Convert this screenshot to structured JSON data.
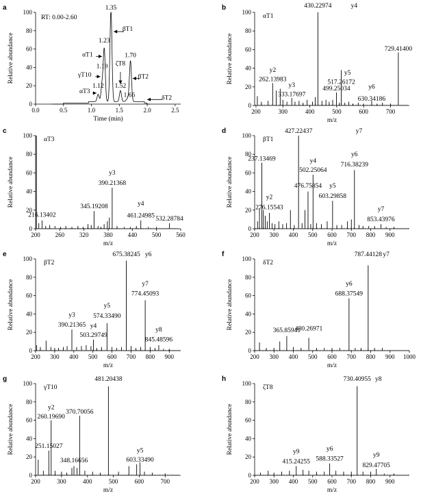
{
  "chart_data": [
    {
      "panel": "a",
      "type": "line",
      "annotation": "RT: 0.00-2.60",
      "xlabel": "Time (min)",
      "ylabel": "Relative abundance",
      "xlim": [
        0,
        2.6
      ],
      "ylim": [
        0,
        100
      ],
      "xticks": [
        0.0,
        0.5,
        1.0,
        1.5,
        2.0,
        2.5
      ],
      "yticks": [
        0,
        20,
        40,
        60,
        80,
        100
      ],
      "peaks": [
        {
          "x": 1.12,
          "y": 8
        },
        {
          "x": 1.19,
          "y": 18
        },
        {
          "x": 1.23,
          "y": 57
        },
        {
          "x": 1.35,
          "y": 100
        },
        {
          "x": 1.52,
          "y": 12
        },
        {
          "x": 1.7,
          "y": 43
        },
        {
          "x": 1.66,
          "y": 4
        }
      ],
      "labels": [
        {
          "text": "1.35",
          "x": 1.35,
          "y": 103
        },
        {
          "text": "1.23",
          "x": 1.23,
          "y": 67
        },
        {
          "text": "1.19",
          "x": 1.19,
          "y": 39
        },
        {
          "text": "1.12",
          "x": 1.12,
          "y": 18
        },
        {
          "text": "1.70",
          "x": 1.7,
          "y": 51
        },
        {
          "text": "1.52",
          "x": 1.52,
          "y": 18
        },
        {
          "text": "1.66",
          "x": 1.68,
          "y": 8
        },
        {
          "text": "βT1",
          "x": 1.65,
          "y": 80
        },
        {
          "text": "αT1",
          "x": 0.93,
          "y": 52
        },
        {
          "text": "γT10",
          "x": 0.88,
          "y": 30
        },
        {
          "text": "ζT8",
          "x": 1.52,
          "y": 42
        },
        {
          "text": "βT2",
          "x": 1.93,
          "y": 28
        },
        {
          "text": "αT3",
          "x": 0.88,
          "y": 12
        },
        {
          "text": "δT2",
          "x": 2.35,
          "y": 5
        }
      ],
      "arrows": [
        {
          "from": [
            1.58,
            79
          ],
          "to": [
            1.4,
            79
          ]
        },
        {
          "from": [
            1.08,
            52
          ],
          "to": [
            1.19,
            52
          ]
        },
        {
          "from": [
            1.07,
            30
          ],
          "to": [
            1.16,
            30
          ]
        },
        {
          "from": [
            1.52,
            35
          ],
          "to": [
            1.52,
            22
          ]
        },
        {
          "from": [
            1.87,
            28
          ],
          "to": [
            1.74,
            28
          ]
        },
        {
          "from": [
            1.02,
            12
          ],
          "to": [
            1.09,
            12
          ]
        },
        {
          "from": [
            2.27,
            5
          ],
          "to": [
            2.0,
            5
          ]
        }
      ]
    },
    {
      "panel": "b",
      "type": "bar",
      "title": "αT1",
      "xlabel": "m/z",
      "ylabel": "Relative abundance",
      "xlim": [
        195,
        770
      ],
      "ylim": [
        0,
        100
      ],
      "xticks": [
        200,
        300,
        400,
        500,
        600,
        700
      ],
      "yticks": [
        0,
        20,
        40,
        60,
        80,
        100
      ],
      "x": [
        205,
        220,
        245,
        262,
        275,
        290,
        300,
        315,
        333,
        345,
        360,
        375,
        390,
        410,
        420,
        430,
        445,
        460,
        472,
        485,
        499,
        510,
        517,
        530,
        545,
        560,
        580,
        600,
        630,
        650,
        670,
        700,
        729
      ],
      "y": [
        10,
        4,
        5,
        24,
        16,
        18,
        6,
        4,
        8,
        4,
        5,
        3,
        6,
        4,
        9,
        100,
        5,
        6,
        4,
        6,
        14,
        3,
        38,
        3,
        4,
        2,
        3,
        2,
        5,
        2,
        3,
        2,
        57
      ],
      "labels": [
        {
          "text": "430.22974",
          "x": 430,
          "y": 105
        },
        {
          "text": "y4",
          "x": 565,
          "y": 105
        },
        {
          "text": "y2",
          "x": 262,
          "y": 36
        },
        {
          "text": "262.13983",
          "x": 262,
          "y": 26
        },
        {
          "text": "729.41400",
          "x": 729,
          "y": 59
        },
        {
          "text": "y5",
          "x": 540,
          "y": 33
        },
        {
          "text": "517.26172",
          "x": 517,
          "y": 23
        },
        {
          "text": "y3",
          "x": 333,
          "y": 20
        },
        {
          "text": "333.17697",
          "x": 333,
          "y": 10
        },
        {
          "text": "499.25034",
          "x": 499,
          "y": 16
        },
        {
          "text": "y6",
          "x": 630,
          "y": 18
        },
        {
          "text": "630.34186",
          "x": 630,
          "y": 5
        }
      ]
    },
    {
      "panel": "c",
      "type": "bar",
      "title": "αT3",
      "xlabel": "m/z",
      "ylabel": "Relative abundance",
      "xlim": [
        200,
        560
      ],
      "ylim": [
        0,
        100
      ],
      "xticks": [
        200,
        260,
        320,
        380,
        440,
        500,
        560
      ],
      "yticks": [
        0,
        20,
        40,
        60,
        80,
        100
      ],
      "x": [
        202,
        208,
        216,
        225,
        235,
        248,
        262,
        275,
        290,
        305,
        318,
        330,
        338,
        345,
        355,
        362,
        370,
        378,
        383,
        390,
        402,
        420,
        435,
        450,
        461,
        480,
        500,
        532
      ],
      "y": [
        100,
        6,
        9,
        3,
        4,
        3,
        2,
        3,
        2,
        3,
        2,
        5,
        4,
        19,
        3,
        2,
        5,
        8,
        12,
        44,
        3,
        2,
        2,
        3,
        9,
        2,
        2,
        6
      ],
      "labels": [
        {
          "text": "216.13402",
          "x": 216,
          "y": 13
        },
        {
          "text": "345.19208",
          "x": 345,
          "y": 22
        },
        {
          "text": "y3",
          "x": 390,
          "y": 58
        },
        {
          "text": "390.21368",
          "x": 390,
          "y": 47
        },
        {
          "text": "y4",
          "x": 461,
          "y": 25
        },
        {
          "text": "461.24985",
          "x": 461,
          "y": 12
        },
        {
          "text": "532.28784",
          "x": 532,
          "y": 9
        }
      ]
    },
    {
      "panel": "d",
      "type": "bar",
      "title": "βT1",
      "xlabel": "m/z",
      "ylabel": "Relative abundance",
      "xlim": [
        200,
        1000
      ],
      "ylim": [
        0,
        100
      ],
      "xticks": [
        200,
        300,
        400,
        500,
        600,
        700,
        800,
        900
      ],
      "yticks": [
        0,
        20,
        40,
        60,
        80,
        100
      ],
      "x": [
        215,
        225,
        237,
        245,
        255,
        265,
        276,
        290,
        305,
        325,
        345,
        365,
        385,
        405,
        427,
        445,
        460,
        476,
        490,
        502,
        520,
        545,
        575,
        603,
        625,
        650,
        680,
        700,
        716,
        740,
        760,
        790,
        820,
        853,
        880,
        920
      ],
      "y": [
        8,
        22,
        71,
        20,
        14,
        8,
        17,
        6,
        5,
        8,
        5,
        6,
        20,
        4,
        100,
        6,
        20,
        40,
        5,
        58,
        6,
        5,
        8,
        30,
        4,
        4,
        8,
        10,
        63,
        4,
        3,
        3,
        3,
        5,
        2,
        2
      ],
      "labels": [
        {
          "text": "427.22437",
          "x": 427,
          "y": 103
        },
        {
          "text": "y7",
          "x": 740,
          "y": 103
        },
        {
          "text": "237.13469",
          "x": 237,
          "y": 73
        },
        {
          "text": "y6",
          "x": 716,
          "y": 78
        },
        {
          "text": "716.38239",
          "x": 716,
          "y": 67
        },
        {
          "text": "y4",
          "x": 502,
          "y": 71
        },
        {
          "text": "502.25064",
          "x": 502,
          "y": 61
        },
        {
          "text": "476.75854",
          "x": 476,
          "y": 44
        },
        {
          "text": "y2",
          "x": 276,
          "y": 32
        },
        {
          "text": "276.15543",
          "x": 276,
          "y": 21
        },
        {
          "text": "y5",
          "x": 603,
          "y": 44
        },
        {
          "text": "603.29858",
          "x": 603,
          "y": 33
        },
        {
          "text": "y7",
          "x": 853,
          "y": 19
        },
        {
          "text": "853.43976",
          "x": 853,
          "y": 8
        }
      ]
    },
    {
      "panel": "e",
      "type": "bar",
      "title": "βT2",
      "xlabel": "m/z",
      "ylabel": "Relative abundance",
      "xlim": [
        200,
        960
      ],
      "ylim": [
        0,
        100
      ],
      "xticks": [
        200,
        300,
        400,
        500,
        600,
        700,
        800,
        900
      ],
      "yticks": [
        0,
        20,
        40,
        60,
        80,
        100
      ],
      "x": [
        205,
        225,
        255,
        280,
        300,
        320,
        345,
        365,
        390,
        415,
        440,
        465,
        490,
        503,
        520,
        545,
        574,
        600,
        625,
        650,
        675,
        700,
        725,
        750,
        774,
        800,
        825,
        845,
        870,
        900
      ],
      "y": [
        6,
        4,
        11,
        4,
        3,
        3,
        4,
        5,
        23,
        4,
        5,
        6,
        5,
        12,
        3,
        4,
        30,
        4,
        3,
        4,
        98,
        5,
        3,
        4,
        55,
        4,
        3,
        6,
        2,
        2
      ],
      "labels": [
        {
          "text": "675.38245",
          "x": 675,
          "y": 103
        },
        {
          "text": "y6",
          "x": 790,
          "y": 103
        },
        {
          "text": "y7",
          "x": 774,
          "y": 71
        },
        {
          "text": "774.45093",
          "x": 774,
          "y": 60
        },
        {
          "text": "y5",
          "x": 574,
          "y": 47
        },
        {
          "text": "574.33490",
          "x": 574,
          "y": 36
        },
        {
          "text": "y3",
          "x": 390,
          "y": 37
        },
        {
          "text": "390.21365",
          "x": 390,
          "y": 26
        },
        {
          "text": "y4",
          "x": 503,
          "y": 25
        },
        {
          "text": "503.29749",
          "x": 503,
          "y": 15
        },
        {
          "text": "y8",
          "x": 845,
          "y": 21
        },
        {
          "text": "845.48596",
          "x": 845,
          "y": 10
        }
      ]
    },
    {
      "panel": "f",
      "type": "bar",
      "title": "δT2",
      "xlabel": "m/z",
      "ylabel": "Relative abundance",
      "xlim": [
        200,
        1000
      ],
      "ylim": [
        0,
        100
      ],
      "xticks": [
        200,
        300,
        400,
        500,
        600,
        700,
        800,
        900,
        1000
      ],
      "yticks": [
        0,
        20,
        40,
        60,
        80,
        100
      ],
      "x": [
        225,
        260,
        300,
        330,
        366,
        400,
        440,
        480,
        520,
        560,
        600,
        640,
        688,
        720,
        750,
        787,
        820,
        860
      ],
      "y": [
        9,
        3,
        3,
        10,
        16,
        4,
        3,
        14,
        3,
        3,
        3,
        3,
        57,
        3,
        3,
        93,
        3,
        3
      ],
      "labels": [
        {
          "text": "787.44128",
          "x": 787,
          "y": 103
        },
        {
          "text": "y7",
          "x": 880,
          "y": 103
        },
        {
          "text": "y6",
          "x": 688,
          "y": 71
        },
        {
          "text": "688.37549",
          "x": 688,
          "y": 60
        },
        {
          "text": "365.85941",
          "x": 366,
          "y": 20
        },
        {
          "text": "480.26971",
          "x": 480,
          "y": 22
        }
      ]
    },
    {
      "panel": "g",
      "type": "bar",
      "title": "γT10",
      "xlabel": "m/z",
      "ylabel": "Relative abundance",
      "xlim": [
        200,
        760
      ],
      "ylim": [
        0,
        100
      ],
      "xticks": [
        200,
        300,
        400,
        500,
        600,
        700
      ],
      "yticks": [
        0,
        20,
        40,
        60,
        80,
        100
      ],
      "x": [
        210,
        230,
        251,
        260,
        275,
        300,
        320,
        340,
        348,
        360,
        370,
        390,
        420,
        450,
        481,
        520,
        560,
        590,
        603,
        620,
        650,
        700
      ],
      "y": [
        17,
        5,
        27,
        60,
        5,
        4,
        3,
        8,
        10,
        8,
        65,
        5,
        4,
        3,
        97,
        4,
        10,
        12,
        14,
        4,
        3,
        2
      ],
      "labels": [
        {
          "text": "481.20438",
          "x": 481,
          "y": 103
        },
        {
          "text": "y2",
          "x": 260,
          "y": 72
        },
        {
          "text": "260.19690",
          "x": 260,
          "y": 62
        },
        {
          "text": "370.70056",
          "x": 370,
          "y": 67
        },
        {
          "text": "251.15027",
          "x": 251,
          "y": 30
        },
        {
          "text": "348.16656",
          "x": 348,
          "y": 14
        },
        {
          "text": "y5",
          "x": 603,
          "y": 25
        },
        {
          "text": "603.33490",
          "x": 603,
          "y": 15
        }
      ]
    },
    {
      "panel": "h",
      "type": "bar",
      "title": "ζT8",
      "xlabel": "m/z",
      "ylabel": "Relative abundance",
      "xlim": [
        200,
        1000
      ],
      "ylim": [
        0,
        100
      ],
      "xticks": [
        200,
        300,
        400,
        500,
        600,
        700,
        800,
        900
      ],
      "yticks": [
        0,
        20,
        40,
        60,
        80,
        100
      ],
      "x": [
        230,
        270,
        300,
        340,
        380,
        415,
        450,
        480,
        520,
        560,
        588,
        620,
        660,
        700,
        730,
        760,
        800,
        829,
        870,
        920
      ],
      "y": [
        3,
        5,
        3,
        4,
        5,
        10,
        6,
        5,
        4,
        4,
        13,
        5,
        4,
        4,
        97,
        4,
        4,
        7,
        2,
        2
      ],
      "labels": [
        {
          "text": "730.40955",
          "x": 730,
          "y": 103
        },
        {
          "text": "y8",
          "x": 840,
          "y": 103
        },
        {
          "text": "y9",
          "x": 415,
          "y": 24
        },
        {
          "text": "415.24255",
          "x": 415,
          "y": 13
        },
        {
          "text": "y6",
          "x": 588,
          "y": 27
        },
        {
          "text": "588.33527",
          "x": 588,
          "y": 16
        },
        {
          "text": "y9",
          "x": 829,
          "y": 20
        },
        {
          "text": "829.47705",
          "x": 829,
          "y": 9
        }
      ]
    }
  ]
}
